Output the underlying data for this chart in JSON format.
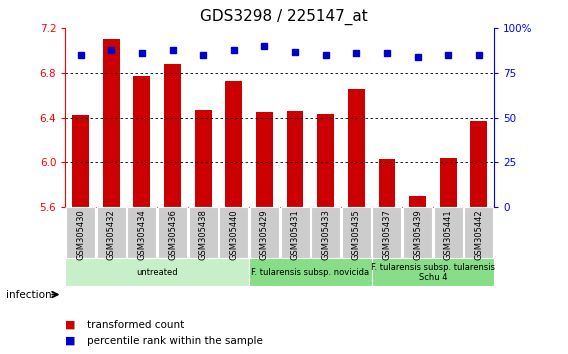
{
  "title": "GDS3298 / 225147_at",
  "categories": [
    "GSM305430",
    "GSM305432",
    "GSM305434",
    "GSM305436",
    "GSM305438",
    "GSM305440",
    "GSM305429",
    "GSM305431",
    "GSM305433",
    "GSM305435",
    "GSM305437",
    "GSM305439",
    "GSM305441",
    "GSM305442"
  ],
  "bar_values": [
    6.42,
    7.1,
    6.77,
    6.88,
    6.47,
    6.73,
    6.45,
    6.46,
    6.43,
    6.66,
    6.03,
    5.7,
    6.04,
    6.37
  ],
  "dot_values_pct": [
    85,
    88,
    86,
    88,
    85,
    88,
    90,
    87,
    85,
    86,
    86,
    84,
    85,
    85
  ],
  "bar_color": "#CC0000",
  "dot_color": "#0000CC",
  "ylim_left": [
    5.6,
    7.2
  ],
  "ylim_right": [
    0,
    100
  ],
  "yticks_left": [
    5.6,
    6.0,
    6.4,
    6.8,
    7.2
  ],
  "yticks_right": [
    0,
    25,
    50,
    75,
    100
  ],
  "grid_values": [
    6.0,
    6.4,
    6.8
  ],
  "groups": [
    {
      "label": "untreated",
      "start": 0,
      "end": 6,
      "color": "#c8f0c8"
    },
    {
      "label": "F. tularensis subsp. novicida",
      "start": 6,
      "end": 10,
      "color": "#88dd88"
    },
    {
      "label": "F. tularensis subsp. tularensis\nSchu 4",
      "start": 10,
      "end": 14,
      "color": "#88dd88"
    }
  ],
  "legend_items": [
    {
      "label": "transformed count",
      "color": "#CC0000"
    },
    {
      "label": "percentile rank within the sample",
      "color": "#0000CC"
    }
  ],
  "infection_label": "infection",
  "bar_base": 5.6,
  "title_fontsize": 11
}
